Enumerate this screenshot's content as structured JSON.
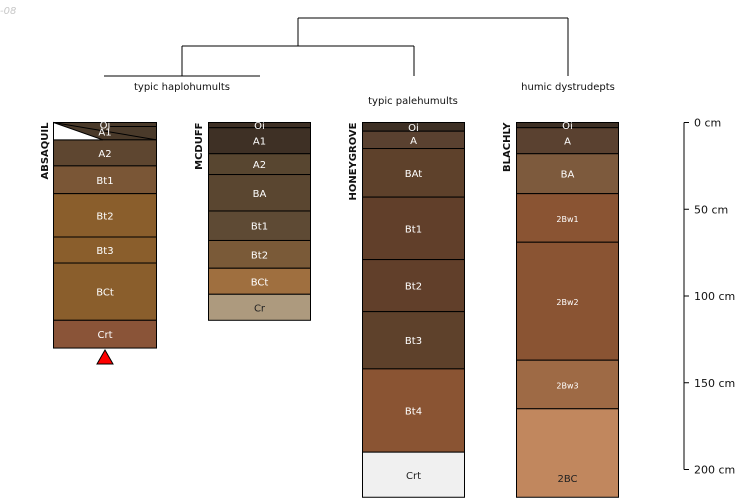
{
  "corner_id": "-08",
  "dendrogram": {
    "groups": [
      {
        "label": "typic haplohumults"
      },
      {
        "label": "typic palehumults"
      },
      {
        "label": "humic dystrudepts"
      }
    ]
  },
  "depth_axis": {
    "unit": "cm",
    "ticks": [
      {
        "depth": 0,
        "label": "0 cm"
      },
      {
        "depth": 50,
        "label": "50 cm"
      },
      {
        "depth": 100,
        "label": "100 cm"
      },
      {
        "depth": 150,
        "label": "150 cm"
      },
      {
        "depth": 200,
        "label": "200 cm"
      }
    ]
  },
  "profiles": [
    {
      "name": "ABSAQUIL",
      "bottom_marker": "red-triangle",
      "horizons": [
        {
          "name": "Oi",
          "top": 0,
          "bottom": 10,
          "color": "#4a3a2a",
          "text_color": "#ffffff",
          "font": 10,
          "hatched": true
        },
        {
          "name": "A1",
          "top": 0,
          "bottom": 10,
          "color": "#4a3a2a",
          "text_color": "#ffffff",
          "font": 10,
          "hatched": false
        },
        {
          "name": "A2",
          "top": 10,
          "bottom": 25,
          "color": "#5e4630",
          "text_color": "#ffffff",
          "font": 10
        },
        {
          "name": "Bt1",
          "top": 25,
          "bottom": 41,
          "color": "#7a5636",
          "text_color": "#ffffff",
          "font": 10
        },
        {
          "name": "Bt2",
          "top": 41,
          "bottom": 66,
          "color": "#8a5e2c",
          "text_color": "#ffffff",
          "font": 10
        },
        {
          "name": "Bt3",
          "top": 66,
          "bottom": 81,
          "color": "#8a5e2c",
          "text_color": "#ffffff",
          "font": 10
        },
        {
          "name": "BCt",
          "top": 81,
          "bottom": 114,
          "color": "#8a5e2c",
          "text_color": "#ffffff",
          "font": 10
        },
        {
          "name": "Crt",
          "top": 114,
          "bottom": 130,
          "color": "#8a5438",
          "text_color": "#ffffff",
          "font": 10
        }
      ]
    },
    {
      "name": "MCDUFF",
      "horizons": [
        {
          "name": "Oi",
          "top": 0,
          "bottom": 3,
          "color": "#3e3025",
          "text_color": "#ffffff",
          "font": 10
        },
        {
          "name": "A1",
          "top": 3,
          "bottom": 18,
          "color": "#3e3025",
          "text_color": "#ffffff",
          "font": 10
        },
        {
          "name": "A2",
          "top": 18,
          "bottom": 30,
          "color": "#584630",
          "text_color": "#ffffff",
          "font": 10
        },
        {
          "name": "BA",
          "top": 30,
          "bottom": 51,
          "color": "#5a4630",
          "text_color": "#ffffff",
          "font": 10
        },
        {
          "name": "Bt1",
          "top": 51,
          "bottom": 68,
          "color": "#5e4a34",
          "text_color": "#ffffff",
          "font": 10
        },
        {
          "name": "Bt2",
          "top": 68,
          "bottom": 84,
          "color": "#7a5a38",
          "text_color": "#ffffff",
          "font": 10
        },
        {
          "name": "BCt",
          "top": 84,
          "bottom": 99,
          "color": "#9f6f3f",
          "text_color": "#ffffff",
          "font": 10
        },
        {
          "name": "Cr",
          "top": 99,
          "bottom": 114,
          "color": "#ad9a7e",
          "text_color": "#222222",
          "font": 10
        }
      ]
    },
    {
      "name": "HONEYGROVE",
      "horizons": [
        {
          "name": "Oi",
          "top": 0,
          "bottom": 5,
          "color": "#3e3025",
          "text_color": "#ffffff",
          "font": 10
        },
        {
          "name": "A",
          "top": 5,
          "bottom": 15,
          "color": "#5a4130",
          "text_color": "#ffffff",
          "font": 10
        },
        {
          "name": "BAt",
          "top": 15,
          "bottom": 43,
          "color": "#5e412b",
          "text_color": "#ffffff",
          "font": 10
        },
        {
          "name": "Bt1",
          "top": 43,
          "bottom": 79,
          "color": "#613f2a",
          "text_color": "#ffffff",
          "font": 10
        },
        {
          "name": "Bt2",
          "top": 79,
          "bottom": 109,
          "color": "#613f2a",
          "text_color": "#ffffff",
          "font": 10
        },
        {
          "name": "Bt3",
          "top": 109,
          "bottom": 142,
          "color": "#5e412b",
          "text_color": "#ffffff",
          "font": 10
        },
        {
          "name": "Bt4",
          "top": 142,
          "bottom": 190,
          "color": "#8a5433",
          "text_color": "#ffffff",
          "font": 10
        },
        {
          "name": "Crt",
          "top": 190,
          "bottom": 216,
          "color": "#f0f0f0",
          "text_color": "#222222",
          "font": 10
        }
      ]
    },
    {
      "name": "BLACHLY",
      "horizons": [
        {
          "name": "Oi",
          "top": 0,
          "bottom": 3,
          "color": "#3e3025",
          "text_color": "#ffffff",
          "font": 10
        },
        {
          "name": "A",
          "top": 3,
          "bottom": 18,
          "color": "#5a4130",
          "text_color": "#ffffff",
          "font": 10
        },
        {
          "name": "BA",
          "top": 18,
          "bottom": 41,
          "color": "#7d5a3d",
          "text_color": "#ffffff",
          "font": 10
        },
        {
          "name": "2Bw1",
          "top": 41,
          "bottom": 69,
          "color": "#8a5433",
          "text_color": "#ffffff",
          "font": 8
        },
        {
          "name": "2Bw2",
          "top": 69,
          "bottom": 137,
          "color": "#8a5433",
          "text_color": "#ffffff",
          "font": 8
        },
        {
          "name": "2Bw3",
          "top": 137,
          "bottom": 165,
          "color": "#9e6a45",
          "text_color": "#ffffff",
          "font": 8
        },
        {
          "name": "2BC",
          "top": 165,
          "bottom": 216,
          "color": "#c1875e",
          "text_color": "#222222",
          "font": 10
        }
      ]
    }
  ]
}
